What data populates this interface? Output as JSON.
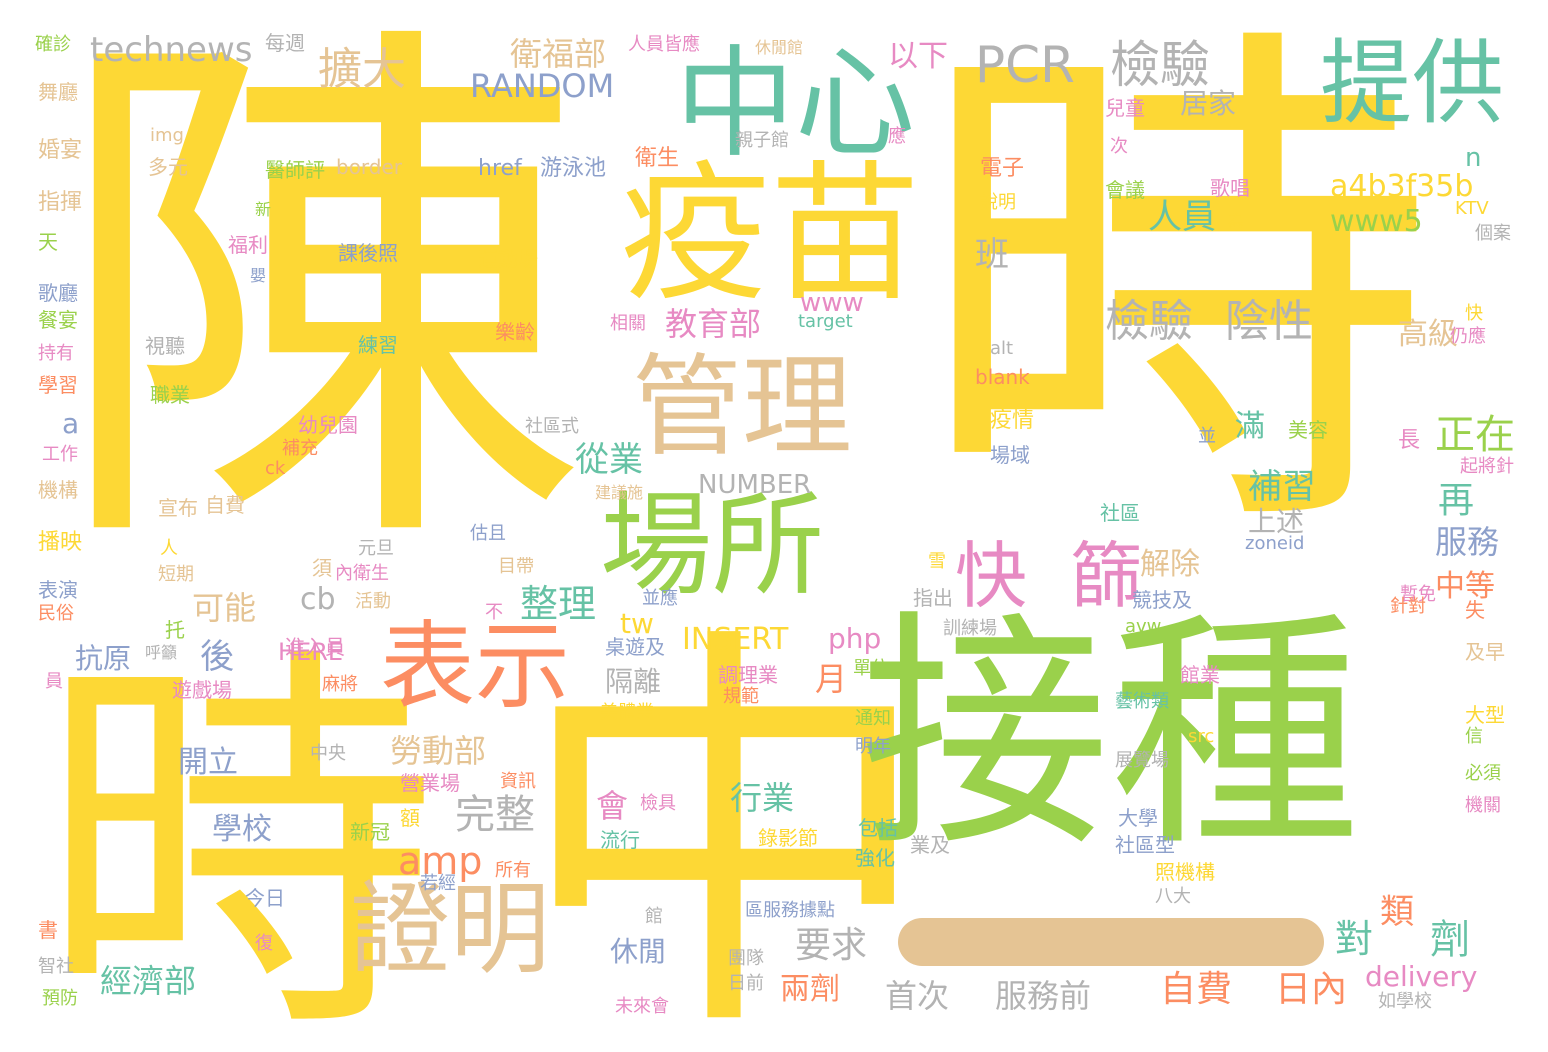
{
  "colors": {
    "yellow": "#fdd835",
    "green": "#9ad14b",
    "teal": "#66c2a5",
    "tan": "#e5c494",
    "orange": "#fc8d62",
    "pink": "#e78ac3",
    "blue": "#8da0cb",
    "gray": "#b3b3b3"
  },
  "words": [
    {
      "t": "陳",
      "c": "yellow"
    },
    {
      "t": "時",
      "c": "yellow"
    },
    {
      "t": "時",
      "c": "yellow"
    },
    {
      "t": "中",
      "c": "yellow"
    },
    {
      "t": "接種",
      "c": "green"
    },
    {
      "t": "疫苗",
      "c": "yellow"
    },
    {
      "t": "中心",
      "c": "teal"
    },
    {
      "t": "提供",
      "c": "teal"
    },
    {
      "t": "管理",
      "c": "tan"
    },
    {
      "t": "場所",
      "c": "green"
    },
    {
      "t": "表示",
      "c": "orange"
    },
    {
      "t": "證明",
      "c": "tan"
    },
    {
      "t": "快",
      "c": "pink"
    },
    {
      "t": "篩",
      "c": "pink"
    },
    {
      "t": "PCR",
      "c": "gray"
    },
    {
      "t": "檢驗",
      "c": "gray"
    },
    {
      "t": "檢驗",
      "c": "gray"
    },
    {
      "t": "陰性",
      "c": "gray"
    },
    {
      "t": "technews",
      "c": "gray"
    },
    {
      "t": "每週",
      "c": "gray"
    },
    {
      "t": "確診",
      "c": "green"
    },
    {
      "t": "衛福部",
      "c": "tan"
    },
    {
      "t": "人員皆應",
      "c": "pink"
    },
    {
      "t": "休閒館",
      "c": "tan"
    },
    {
      "t": "擴大",
      "c": "tan"
    },
    {
      "t": "RANDOM",
      "c": "blue"
    },
    {
      "t": "以下",
      "c": "pink"
    },
    {
      "t": "居家",
      "c": "gray"
    },
    {
      "t": "兒童",
      "c": "pink"
    },
    {
      "t": "舞廳",
      "c": "tan"
    },
    {
      "t": "婚宴",
      "c": "tan"
    },
    {
      "t": "指揮",
      "c": "tan"
    },
    {
      "t": "天",
      "c": "green"
    },
    {
      "t": "歌廳",
      "c": "blue"
    },
    {
      "t": "餐宴",
      "c": "green"
    },
    {
      "t": "持有",
      "c": "pink"
    },
    {
      "t": "學習",
      "c": "orange"
    },
    {
      "t": "img",
      "c": "tan"
    },
    {
      "t": "多元",
      "c": "tan"
    },
    {
      "t": "醫師評",
      "c": "green"
    },
    {
      "t": "border",
      "c": "tan"
    },
    {
      "t": "href",
      "c": "blue"
    },
    {
      "t": "游泳池",
      "c": "blue"
    },
    {
      "t": "衛生",
      "c": "orange"
    },
    {
      "t": "親子館",
      "c": "gray"
    },
    {
      "t": "應",
      "c": "pink"
    },
    {
      "t": "電子",
      "c": "orange"
    },
    {
      "t": "說明",
      "c": "yellow"
    },
    {
      "t": "會議",
      "c": "green"
    },
    {
      "t": "歌唱",
      "c": "pink"
    },
    {
      "t": "次",
      "c": "pink"
    },
    {
      "t": "a4b3f35b",
      "c": "yellow"
    },
    {
      "t": "n",
      "c": "teal"
    },
    {
      "t": "www5",
      "c": "green"
    },
    {
      "t": "人員",
      "c": "teal"
    },
    {
      "t": "KTV",
      "c": "yellow"
    },
    {
      "t": "為",
      "c": "yellow"
    },
    {
      "t": "個案",
      "c": "gray"
    },
    {
      "t": "新",
      "c": "green"
    },
    {
      "t": "福利",
      "c": "pink"
    },
    {
      "t": "嬰",
      "c": "blue"
    },
    {
      "t": "課後照",
      "c": "blue"
    },
    {
      "t": "運動場",
      "c": "yellow"
    },
    {
      "t": "班",
      "c": "gray"
    },
    {
      "t": "教育部",
      "c": "pink"
    },
    {
      "t": "www",
      "c": "pink"
    },
    {
      "t": "target",
      "c": "teal"
    },
    {
      "t": "視聽",
      "c": "gray"
    },
    {
      "t": "相關",
      "c": "pink"
    },
    {
      "t": "練習",
      "c": "teal"
    },
    {
      "t": "樂齡",
      "c": "orange"
    },
    {
      "t": "alt",
      "c": "gray"
    },
    {
      "t": "blank",
      "c": "orange"
    },
    {
      "t": "高級",
      "c": "tan"
    },
    {
      "t": "快",
      "c": "yellow"
    },
    {
      "t": "仍應",
      "c": "pink"
    },
    {
      "t": "職業",
      "c": "green"
    },
    {
      "t": "a",
      "c": "blue"
    },
    {
      "t": "幼兒園",
      "c": "pink"
    },
    {
      "t": "社區式",
      "c": "gray"
    },
    {
      "t": "疫情",
      "c": "yellow"
    },
    {
      "t": "場域",
      "c": "blue"
    },
    {
      "t": "並",
      "c": "blue"
    },
    {
      "t": "滿",
      "c": "teal"
    },
    {
      "t": "美容",
      "c": "green"
    },
    {
      "t": "正在",
      "c": "green"
    },
    {
      "t": "長",
      "c": "pink"
    },
    {
      "t": "工作",
      "c": "pink"
    },
    {
      "t": "補充",
      "c": "orange"
    },
    {
      "t": "ck",
      "c": "orange"
    },
    {
      "t": "從業",
      "c": "teal"
    },
    {
      "t": "NUMBER",
      "c": "gray"
    },
    {
      "t": "補習",
      "c": "teal"
    },
    {
      "t": "起將針",
      "c": "pink"
    },
    {
      "t": "機構",
      "c": "tan"
    },
    {
      "t": "宣布",
      "c": "tan"
    },
    {
      "t": "自費",
      "c": "tan"
    },
    {
      "t": "建議施",
      "c": "tan"
    },
    {
      "t": "社區",
      "c": "teal"
    },
    {
      "t": "上述",
      "c": "gray"
    },
    {
      "t": "再",
      "c": "teal"
    },
    {
      "t": "播映",
      "c": "yellow"
    },
    {
      "t": "人",
      "c": "yellow"
    },
    {
      "t": "元旦",
      "c": "gray"
    },
    {
      "t": "估且",
      "c": "blue"
    },
    {
      "t": "cb",
      "c": "gray"
    },
    {
      "t": "整理",
      "c": "teal"
    },
    {
      "t": "解除",
      "c": "tan"
    },
    {
      "t": "zoneid",
      "c": "blue"
    },
    {
      "t": "服務",
      "c": "blue"
    },
    {
      "t": "短期",
      "c": "tan"
    },
    {
      "t": "須",
      "c": "tan"
    },
    {
      "t": "內衛生",
      "c": "pink"
    },
    {
      "t": "目帶",
      "c": "tan"
    },
    {
      "t": "雪",
      "c": "yellow"
    },
    {
      "t": "可能",
      "c": "tan"
    },
    {
      "t": "活動",
      "c": "tan"
    },
    {
      "t": "指出",
      "c": "gray"
    },
    {
      "t": "競技及",
      "c": "blue"
    },
    {
      "t": "中等",
      "c": "orange"
    },
    {
      "t": "表演",
      "c": "blue"
    },
    {
      "t": "民俗",
      "c": "orange"
    },
    {
      "t": "不",
      "c": "pink"
    },
    {
      "t": "並應",
      "c": "blue"
    },
    {
      "t": "tw",
      "c": "yellow"
    },
    {
      "t": "INSERT",
      "c": "yellow"
    },
    {
      "t": "php",
      "c": "pink"
    },
    {
      "t": "訓練場",
      "c": "gray"
    },
    {
      "t": "暫免",
      "c": "pink"
    },
    {
      "t": "針對",
      "c": "orange"
    },
    {
      "t": "失",
      "c": "orange"
    },
    {
      "t": "avw",
      "c": "green"
    },
    {
      "t": "後",
      "c": "blue"
    },
    {
      "t": "抗原",
      "c": "blue"
    },
    {
      "t": "呼籲",
      "c": "gray"
    },
    {
      "t": "托",
      "c": "green"
    },
    {
      "t": "進入員",
      "c": "pink"
    },
    {
      "t": "HERE",
      "c": "pink"
    },
    {
      "t": "桌遊及",
      "c": "blue"
    },
    {
      "t": "隔離",
      "c": "gray"
    },
    {
      "t": "月",
      "c": "orange"
    },
    {
      "t": "單位",
      "c": "green"
    },
    {
      "t": "及早",
      "c": "tan"
    },
    {
      "t": "員",
      "c": "pink"
    },
    {
      "t": "遊戲場",
      "c": "pink"
    },
    {
      "t": "麻將",
      "c": "orange"
    },
    {
      "t": "調理業",
      "c": "pink"
    },
    {
      "t": "規範",
      "c": "orange"
    },
    {
      "t": "館業",
      "c": "pink"
    },
    {
      "t": "藝術類",
      "c": "teal"
    },
    {
      "t": "勞動部",
      "c": "tan"
    },
    {
      "t": "美體業",
      "c": "yellow"
    },
    {
      "t": "通知",
      "c": "green"
    },
    {
      "t": "明年",
      "c": "blue"
    },
    {
      "t": "大型",
      "c": "yellow"
    },
    {
      "t": "信",
      "c": "green"
    },
    {
      "t": "開立",
      "c": "blue"
    },
    {
      "t": "中央",
      "c": "gray"
    },
    {
      "t": "src",
      "c": "yellow"
    },
    {
      "t": "展覽場",
      "c": "gray"
    },
    {
      "t": "必須",
      "c": "green"
    },
    {
      "t": "完整",
      "c": "gray"
    },
    {
      "t": "營業場",
      "c": "pink"
    },
    {
      "t": "資訊",
      "c": "orange"
    },
    {
      "t": "行業",
      "c": "teal"
    },
    {
      "t": "會",
      "c": "pink"
    },
    {
      "t": "檢具",
      "c": "pink"
    },
    {
      "t": "流行",
      "c": "teal"
    },
    {
      "t": "錄影節",
      "c": "yellow"
    },
    {
      "t": "機關",
      "c": "pink"
    },
    {
      "t": "學校",
      "c": "blue"
    },
    {
      "t": "額",
      "c": "yellow"
    },
    {
      "t": "新冠",
      "c": "green"
    },
    {
      "t": "包括",
      "c": "teal"
    },
    {
      "t": "強化",
      "c": "teal"
    },
    {
      "t": "業及",
      "c": "gray"
    },
    {
      "t": "大學",
      "c": "blue"
    },
    {
      "t": "社區型",
      "c": "blue"
    },
    {
      "t": "amp",
      "c": "orange"
    },
    {
      "t": "所有",
      "c": "orange"
    },
    {
      "t": "照機構",
      "c": "yellow"
    },
    {
      "t": "八大",
      "c": "gray"
    },
    {
      "t": "若經",
      "c": "blue"
    },
    {
      "t": "今日",
      "c": "blue"
    },
    {
      "t": "館",
      "c": "gray"
    },
    {
      "t": "區服務據點",
      "c": "blue"
    },
    {
      "t": "類",
      "c": "orange"
    },
    {
      "t": "劑",
      "c": "teal"
    },
    {
      "t": "對",
      "c": "teal"
    },
    {
      "t": "要求",
      "c": "gray"
    },
    {
      "t": "書",
      "c": "orange"
    },
    {
      "t": "復",
      "c": "pink"
    },
    {
      "t": "休閒",
      "c": "blue"
    },
    {
      "t": "團隊",
      "c": "gray"
    },
    {
      "t": "日前",
      "c": "gray"
    },
    {
      "t": "智社",
      "c": "gray"
    },
    {
      "t": "經濟部",
      "c": "teal"
    },
    {
      "t": "兩劑",
      "c": "orange"
    },
    {
      "t": "首次",
      "c": "gray"
    },
    {
      "t": "服務前",
      "c": "gray"
    },
    {
      "t": "自費",
      "c": "orange"
    },
    {
      "t": "日內",
      "c": "orange"
    },
    {
      "t": "delivery",
      "c": "pink"
    },
    {
      "t": "如學校",
      "c": "gray"
    },
    {
      "t": "預防",
      "c": "green"
    },
    {
      "t": "未來會",
      "c": "pink"
    }
  ]
}
